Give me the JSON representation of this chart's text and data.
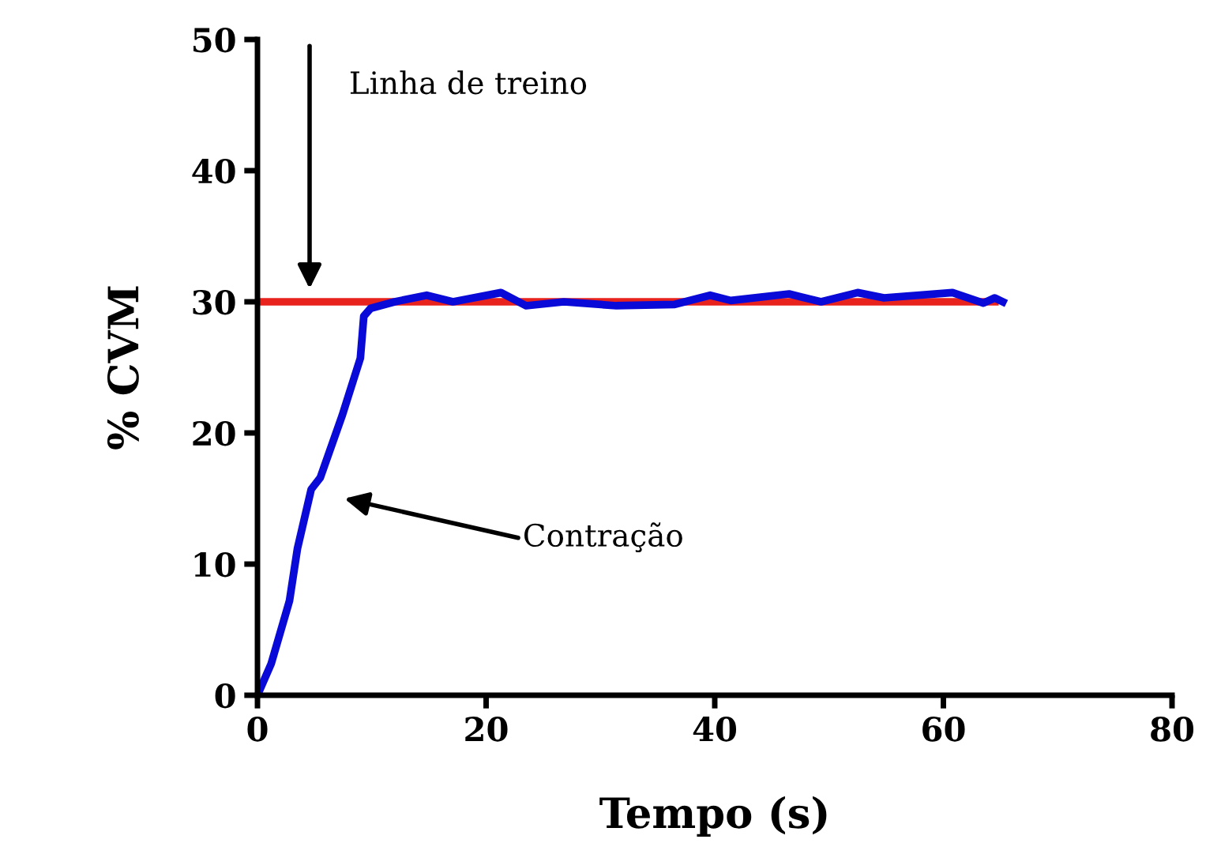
{
  "chart_data": {
    "type": "line",
    "xlabel": "Tempo (s)",
    "ylabel": "% CVM",
    "xlim": [
      0,
      80
    ],
    "ylim": [
      0,
      50
    ],
    "xticks": [
      0,
      20,
      40,
      60,
      80
    ],
    "yticks": [
      0,
      10,
      20,
      30,
      40,
      50
    ],
    "grid": false,
    "legend": false,
    "marker": "none",
    "line_style": "solid",
    "series": [
      {
        "color": "#e8231e",
        "x": [
          0,
          64.5
        ],
        "values": [
          30,
          30
        ]
      },
      {
        "color": "#0a0ad8",
        "x": [
          0,
          1.2,
          2.8,
          3.5,
          4.7,
          5.5,
          7.4,
          9.0,
          9.3,
          9.9,
          12.0,
          14.8,
          17.1,
          21.3,
          23.5,
          26.8,
          31.4,
          36.5,
          39.6,
          41.4,
          46.5,
          49.3,
          52.5,
          54.8,
          60.8,
          63.5,
          64.5,
          65.2
        ],
        "values": [
          0,
          2.4,
          7.2,
          11.2,
          15.7,
          16.6,
          21.3,
          25.7,
          28.9,
          29.5,
          30.0,
          30.5,
          30.0,
          30.7,
          29.7,
          30.0,
          29.7,
          29.8,
          30.5,
          30.1,
          30.6,
          30.0,
          30.7,
          30.3,
          30.7,
          29.9,
          30.3,
          30.0
        ]
      }
    ],
    "annotations": [
      "Linha de treino",
      "Contração"
    ]
  }
}
